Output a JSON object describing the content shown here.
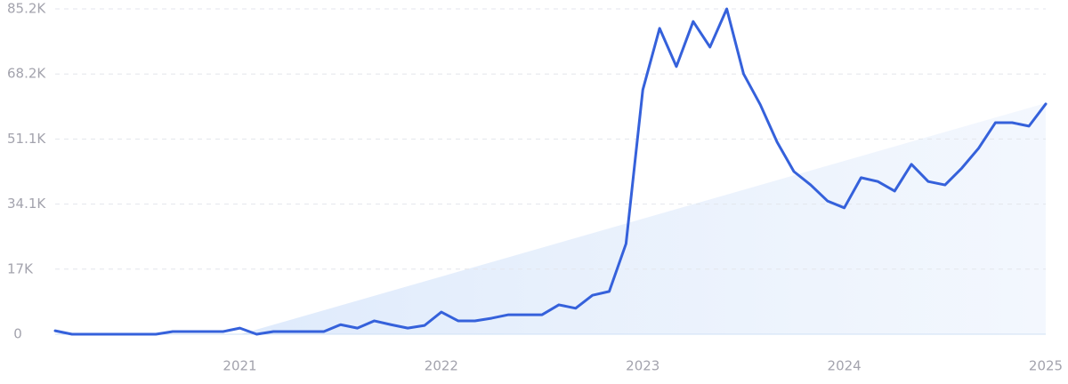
{
  "chart_data": {
    "type": "line",
    "x": [
      "2020-02",
      "2020-03",
      "2020-04",
      "2020-05",
      "2020-06",
      "2020-07",
      "2020-08",
      "2020-09",
      "2020-10",
      "2020-11",
      "2020-12",
      "2021-01",
      "2021-02",
      "2021-03",
      "2021-04",
      "2021-05",
      "2021-06",
      "2021-07",
      "2021-08",
      "2021-09",
      "2021-10",
      "2021-11",
      "2021-12",
      "2022-01",
      "2022-02",
      "2022-03",
      "2022-04",
      "2022-05",
      "2022-06",
      "2022-07",
      "2022-08",
      "2022-09",
      "2022-10",
      "2022-11",
      "2022-12",
      "2023-01",
      "2023-02",
      "2023-03",
      "2023-04",
      "2023-05",
      "2023-06",
      "2023-07",
      "2023-08",
      "2023-09",
      "2023-10",
      "2023-11",
      "2023-12",
      "2024-01",
      "2024-02",
      "2024-03",
      "2024-04",
      "2024-05",
      "2024-06",
      "2024-07",
      "2024-08",
      "2024-09",
      "2024-10",
      "2024-11",
      "2024-12",
      "2025-01"
    ],
    "series": [
      {
        "color": "#3561db",
        "values": [
          900,
          0,
          0,
          0,
          0,
          0,
          0,
          700,
          700,
          700,
          700,
          1600,
          0,
          700,
          700,
          700,
          700,
          2500,
          1600,
          3500,
          2500,
          1600,
          2300,
          5800,
          3500,
          3500,
          4200,
          5100,
          5100,
          5100,
          7700,
          6800,
          10200,
          11200,
          23700,
          64000,
          80100,
          70100,
          81900,
          75200,
          85200,
          68200,
          60100,
          50300,
          42600,
          39100,
          34900,
          33100,
          41000,
          40000,
          37500,
          44500,
          40000,
          39100,
          43500,
          48700,
          55400,
          55400,
          54500,
          60300
        ]
      }
    ],
    "xlim": [
      "2020-02",
      "2025-01"
    ],
    "xticks": [
      {
        "value": "2021-01",
        "label": "2021"
      },
      {
        "value": "2022-01",
        "label": "2022"
      },
      {
        "value": "2023-01",
        "label": "2023"
      },
      {
        "value": "2024-01",
        "label": "2024"
      },
      {
        "value": "2025-01",
        "label": "2025"
      }
    ],
    "ylim": [
      0,
      85200
    ],
    "yticks": [
      0,
      {
        "value": 17040,
        "label": "17K"
      },
      {
        "value": 34080,
        "label": "34.1K"
      },
      {
        "value": 51120,
        "label": "51.1K"
      },
      {
        "value": 68160,
        "label": "68.2K"
      },
      {
        "value": 85200,
        "label": "85.2K"
      }
    ],
    "grid": true
  }
}
